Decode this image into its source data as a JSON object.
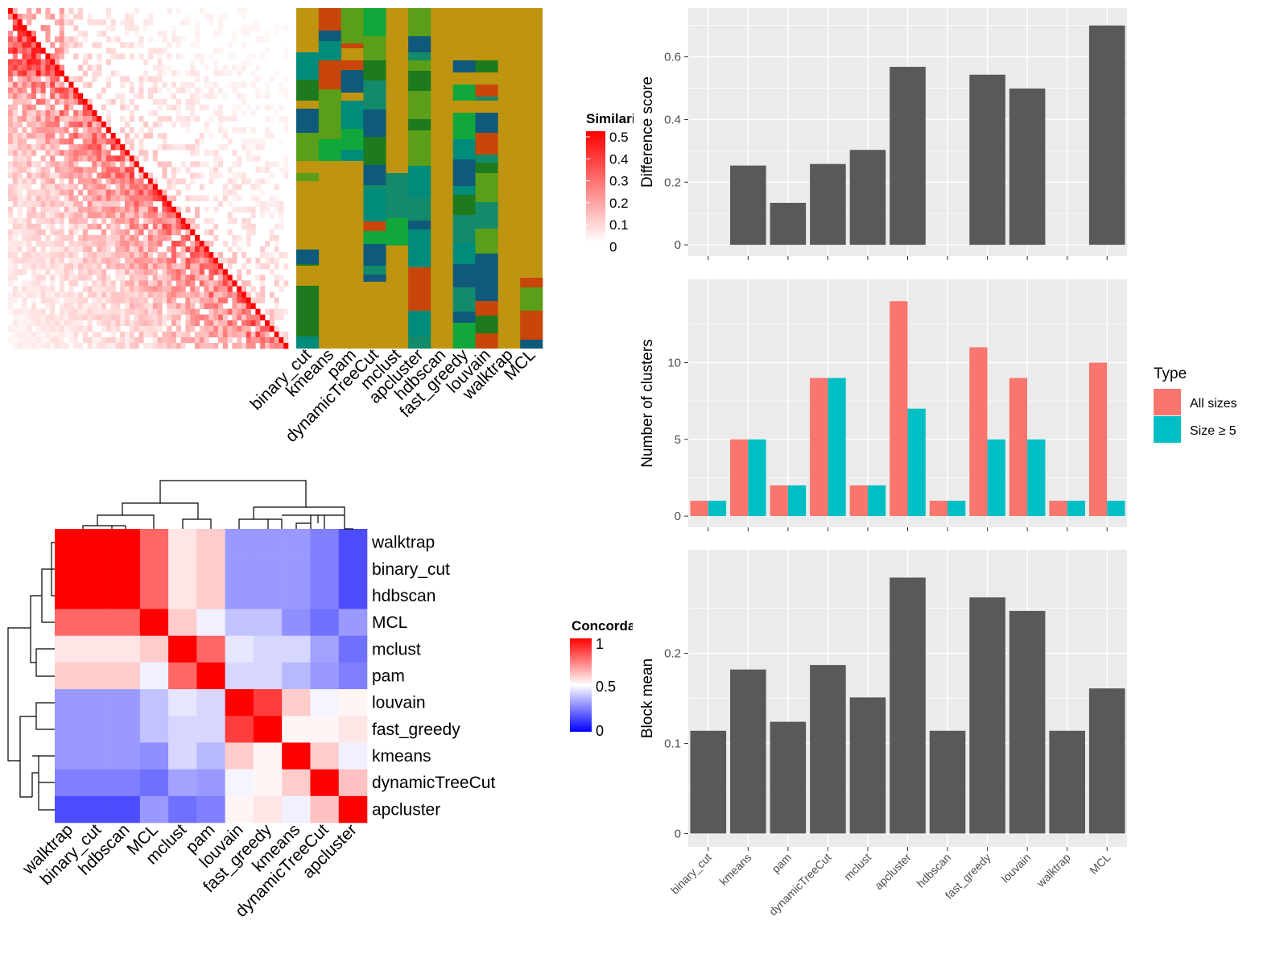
{
  "similarity_legend": {
    "title": "Similarity",
    "ticks": [
      "0.5",
      "0.4",
      "0.3",
      "0.2",
      "0.1",
      "0"
    ]
  },
  "concordance_legend": {
    "title": "Concordance",
    "ticks": [
      "1",
      "0.5",
      "0"
    ]
  },
  "colors": {
    "bar": "#595959",
    "all_sizes": "#F8766D",
    "size_ge5": "#00BFC4",
    "panel": "#EBEBEB",
    "heat_low": "#0000FF",
    "heat_mid": "#FFFFFF",
    "heat_high": "#FF0000",
    "cluster_bg": "#BF9410"
  },
  "chart_data": [
    {
      "type": "heatmap",
      "title": "",
      "xlabels": [
        "binary_cut",
        "kmeans",
        "pam",
        "dynamicTreeCut",
        "mclust",
        "apcluster",
        "hdbscan",
        "fast_greedy",
        "louvain",
        "walktrap",
        "MCL"
      ],
      "legend": "Similarity",
      "range": [
        0,
        0.5
      ]
    },
    {
      "type": "heatmap",
      "title": "",
      "legend": "Concordance",
      "range": [
        0,
        1
      ],
      "rows": [
        "walktrap",
        "binary_cut",
        "hdbscan",
        "MCL",
        "mclust",
        "pam",
        "louvain",
        "fast_greedy",
        "kmeans",
        "dynamicTreeCut",
        "apcluster"
      ],
      "cols": [
        "walktrap",
        "binary_cut",
        "hdbscan",
        "MCL",
        "mclust",
        "pam",
        "louvain",
        "fast_greedy",
        "kmeans",
        "dynamicTreeCut",
        "apcluster"
      ],
      "values": [
        [
          1,
          1,
          1,
          0.8,
          0.55,
          0.6,
          0.3,
          0.3,
          0.3,
          0.25,
          0.15
        ],
        [
          1,
          1,
          1,
          0.8,
          0.55,
          0.6,
          0.3,
          0.3,
          0.3,
          0.25,
          0.15
        ],
        [
          1,
          1,
          1,
          0.8,
          0.55,
          0.6,
          0.3,
          0.3,
          0.3,
          0.25,
          0.15
        ],
        [
          0.8,
          0.8,
          0.8,
          1,
          0.6,
          0.47,
          0.38,
          0.38,
          0.28,
          0.22,
          0.3
        ],
        [
          0.55,
          0.55,
          0.55,
          0.6,
          1,
          0.8,
          0.45,
          0.42,
          0.42,
          0.32,
          0.22
        ],
        [
          0.6,
          0.6,
          0.6,
          0.47,
          0.8,
          1,
          0.42,
          0.42,
          0.36,
          0.3,
          0.25
        ],
        [
          0.3,
          0.3,
          0.3,
          0.38,
          0.45,
          0.42,
          1,
          0.88,
          0.6,
          0.48,
          0.52
        ],
        [
          0.3,
          0.3,
          0.3,
          0.38,
          0.42,
          0.42,
          0.88,
          1,
          0.52,
          0.52,
          0.55
        ],
        [
          0.3,
          0.3,
          0.3,
          0.28,
          0.42,
          0.36,
          0.6,
          0.52,
          1,
          0.6,
          0.47
        ],
        [
          0.25,
          0.25,
          0.25,
          0.22,
          0.32,
          0.3,
          0.48,
          0.52,
          0.6,
          1,
          0.62
        ],
        [
          0.15,
          0.15,
          0.15,
          0.3,
          0.22,
          0.25,
          0.52,
          0.55,
          0.47,
          0.62,
          1
        ]
      ]
    },
    {
      "type": "bar",
      "ylabel": "Difference score",
      "ylim": [
        0,
        0.72
      ],
      "yticks": [
        0,
        0.2,
        0.4,
        0.6
      ],
      "categories": [
        "binary_cut",
        "kmeans",
        "pam",
        "dynamicTreeCut",
        "mclust",
        "apcluster",
        "hdbscan",
        "fast_greedy",
        "louvain",
        "walktrap",
        "MCL"
      ],
      "values": [
        0,
        0.253,
        0.134,
        0.258,
        0.303,
        0.568,
        0,
        0.543,
        0.499,
        0,
        0.7
      ]
    },
    {
      "type": "bar",
      "ylabel": "Number of clusters",
      "ylim": [
        0,
        14.7
      ],
      "yticks": [
        0,
        5,
        10
      ],
      "categories": [
        "binary_cut",
        "kmeans",
        "pam",
        "dynamicTreeCut",
        "mclust",
        "apcluster",
        "hdbscan",
        "fast_greedy",
        "louvain",
        "walktrap",
        "MCL"
      ],
      "legend": {
        "title": "Type",
        "position": "right"
      },
      "series": [
        {
          "name": "All sizes",
          "values": [
            1,
            5,
            2,
            9,
            2,
            14,
            1,
            11,
            9,
            1,
            10
          ]
        },
        {
          "name": "Size ≥ 5",
          "values": [
            1,
            5,
            2,
            9,
            2,
            7,
            1,
            5,
            5,
            1,
            1
          ]
        }
      ]
    },
    {
      "type": "bar",
      "ylabel": "Block mean",
      "ylim": [
        0,
        0.3
      ],
      "yticks": [
        0,
        0.1,
        0.2
      ],
      "categories": [
        "binary_cut",
        "kmeans",
        "pam",
        "dynamicTreeCut",
        "mclust",
        "apcluster",
        "hdbscan",
        "fast_greedy",
        "louvain",
        "walktrap",
        "MCL"
      ],
      "values": [
        0.114,
        0.182,
        0.124,
        0.187,
        0.151,
        0.284,
        0.114,
        0.262,
        0.247,
        0.114,
        0.161
      ]
    }
  ]
}
